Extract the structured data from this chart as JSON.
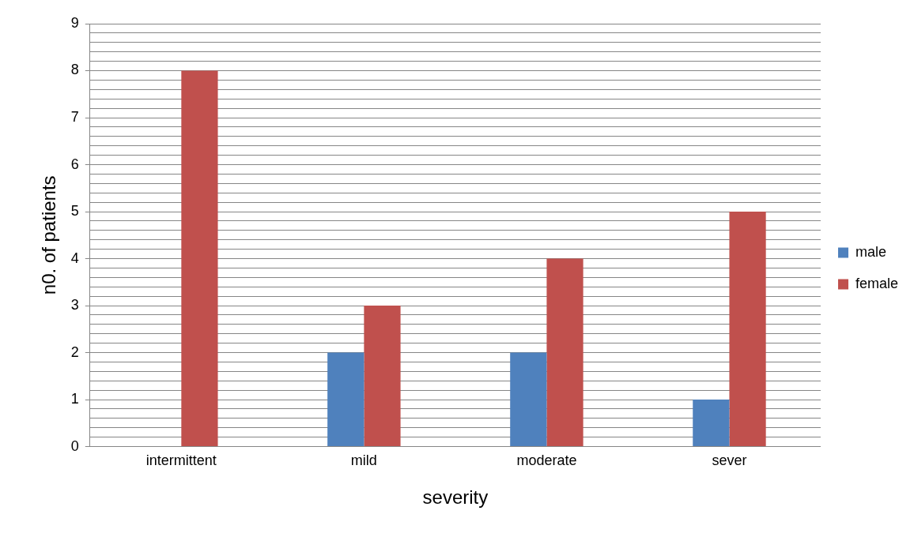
{
  "chart_data": {
    "type": "bar",
    "xlabel": "severity",
    "ylabel": "n0. of patients",
    "categories": [
      "intermittent",
      "mild",
      "moderate",
      "sever"
    ],
    "series": [
      {
        "name": "male",
        "color": "#4f81bd",
        "values": [
          0,
          2,
          2,
          1
        ]
      },
      {
        "name": "female",
        "color": "#c0504d",
        "values": [
          8,
          3,
          4,
          5
        ]
      }
    ],
    "ylim": [
      0,
      9
    ],
    "yticks": [
      0,
      {
        "value": 0.2,
        "label": null
      },
      {
        "value": 0.4,
        "label": null
      },
      {
        "value": 0.6,
        "label": null
      },
      {
        "value": 0.8,
        "label": null
      },
      1,
      {
        "value": 1.2,
        "label": null
      },
      {
        "value": 1.4,
        "label": null
      },
      {
        "value": 1.6,
        "label": null
      },
      {
        "value": 1.8,
        "label": null
      },
      2,
      {
        "value": 2.2,
        "label": null
      },
      {
        "value": 2.4,
        "label": null
      },
      {
        "value": 2.6,
        "label": null
      },
      {
        "value": 2.8,
        "label": null
      },
      3,
      {
        "value": 3.2,
        "label": null
      },
      {
        "value": 3.4,
        "label": null
      },
      {
        "value": 3.6,
        "label": null
      },
      {
        "value": 3.8,
        "label": null
      },
      4,
      {
        "value": 4.2,
        "label": null
      },
      {
        "value": 4.4,
        "label": null
      },
      {
        "value": 4.6,
        "label": null
      },
      {
        "value": 4.8,
        "label": null
      },
      5,
      {
        "value": 5.2,
        "label": null
      },
      {
        "value": 5.4,
        "label": null
      },
      {
        "value": 5.6,
        "label": null
      },
      {
        "value": 5.8,
        "label": null
      },
      6,
      {
        "value": 6.2,
        "label": null
      },
      {
        "value": 6.4,
        "label": null
      },
      {
        "value": 6.6,
        "label": null
      },
      {
        "value": 6.8,
        "label": null
      },
      7,
      {
        "value": 7.2,
        "label": null
      },
      {
        "value": 7.4,
        "label": null
      },
      {
        "value": 7.6,
        "label": null
      },
      {
        "value": 7.8,
        "label": null
      },
      8,
      {
        "value": 8.2,
        "label": null
      },
      {
        "value": 8.4,
        "label": null
      },
      {
        "value": 8.6,
        "label": null
      },
      {
        "value": 8.8,
        "label": null
      },
      9
    ],
    "grid": true,
    "legend": "right"
  }
}
